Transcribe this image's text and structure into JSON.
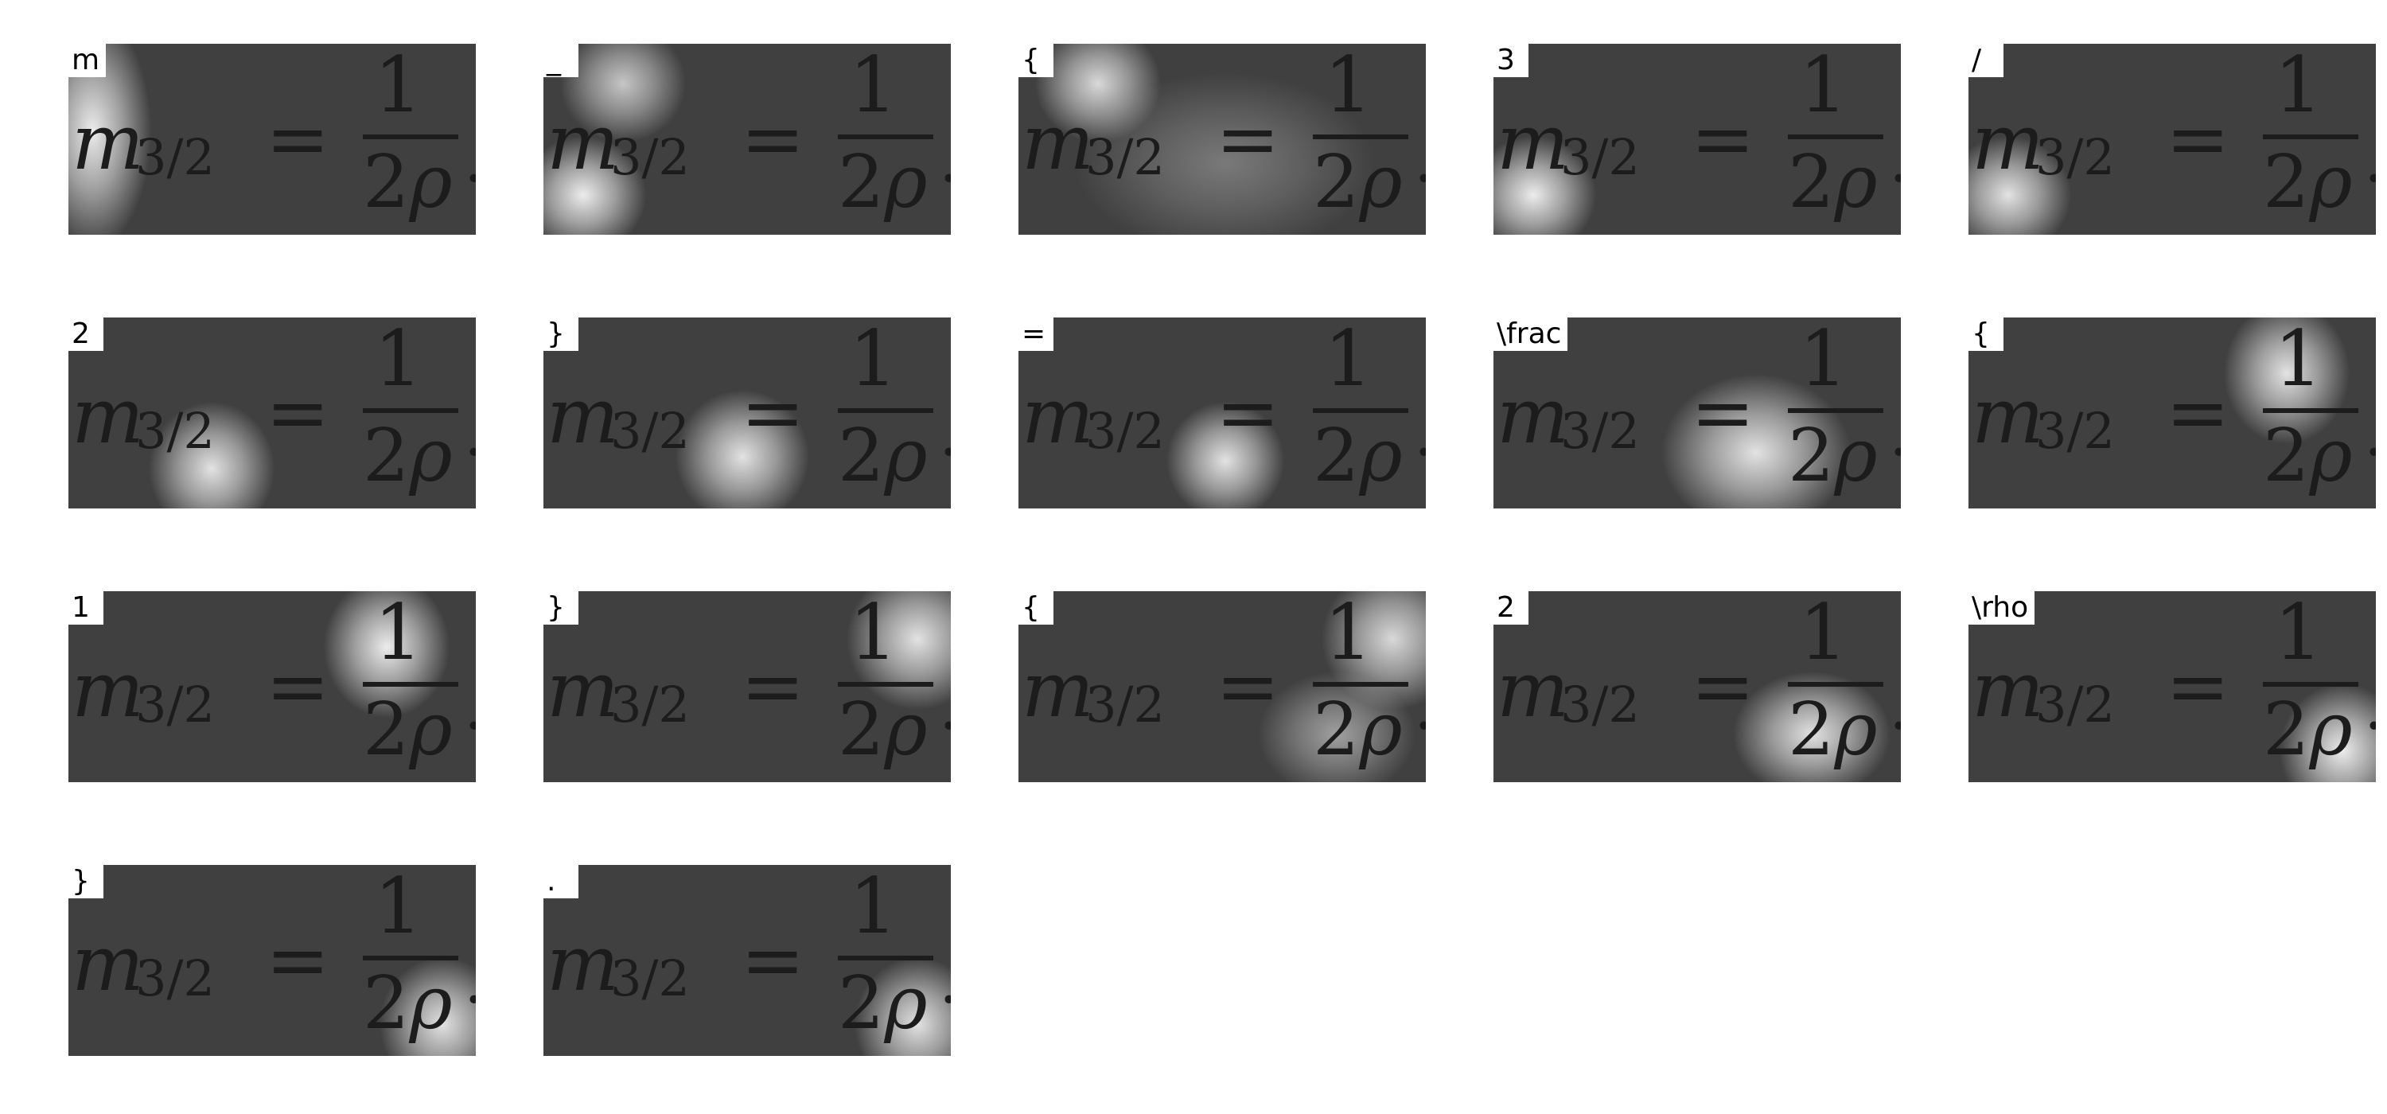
{
  "tiles": [
    {
      "token": "m",
      "highlights": [
        {
          "pos": "left",
          "intensity": 0.9
        }
      ]
    },
    {
      "token": "_",
      "highlights": [
        {
          "pos": "left-bottom",
          "intensity": 0.9
        },
        {
          "pos": "left-top",
          "intensity": 0.7
        }
      ]
    },
    {
      "token": "{",
      "highlights": [
        {
          "pos": "left-top",
          "intensity": 0.8
        },
        {
          "pos": "spread",
          "intensity": 0.3
        }
      ]
    },
    {
      "token": "3",
      "highlights": [
        {
          "pos": "left-bottom",
          "intensity": 0.9
        }
      ]
    },
    {
      "token": "/",
      "highlights": [
        {
          "pos": "left-bottom",
          "intensity": 0.85
        }
      ]
    },
    {
      "token": "2",
      "highlights": [
        {
          "pos": "subscript-2",
          "intensity": 0.85
        }
      ]
    },
    {
      "token": "}",
      "highlights": [
        {
          "pos": "center-left",
          "intensity": 0.85
        }
      ]
    },
    {
      "token": "=",
      "highlights": [
        {
          "pos": "center",
          "intensity": 0.85
        }
      ]
    },
    {
      "token": "\\frac",
      "highlights": [
        {
          "pos": "fraction-bottom",
          "intensity": 0.85
        }
      ]
    },
    {
      "token": "{",
      "highlights": [
        {
          "pos": "numerator",
          "intensity": 0.85
        }
      ]
    },
    {
      "token": "1",
      "highlights": [
        {
          "pos": "numerator",
          "intensity": 0.9
        }
      ]
    },
    {
      "token": "}",
      "highlights": [
        {
          "pos": "right-top",
          "intensity": 0.85
        }
      ]
    },
    {
      "token": "{",
      "highlights": [
        {
          "pos": "right-top",
          "intensity": 0.8
        },
        {
          "pos": "denominator",
          "intensity": 0.5
        }
      ]
    },
    {
      "token": "2",
      "highlights": [
        {
          "pos": "denominator",
          "intensity": 0.85
        }
      ]
    },
    {
      "token": "\\rho",
      "highlights": [
        {
          "pos": "right-bottom",
          "intensity": 0.9
        }
      ]
    },
    {
      "token": "}",
      "highlights": [
        {
          "pos": "right-bottom",
          "intensity": 0.85
        }
      ]
    },
    {
      "token": ".",
      "highlights": [
        {
          "pos": "right-bottom",
          "intensity": 0.85
        }
      ]
    }
  ],
  "formula": {
    "var": "m",
    "sub": "3/2",
    "eq": "=",
    "num": "1",
    "den_coef": "2",
    "den_sym": "ρ",
    "end": "."
  }
}
